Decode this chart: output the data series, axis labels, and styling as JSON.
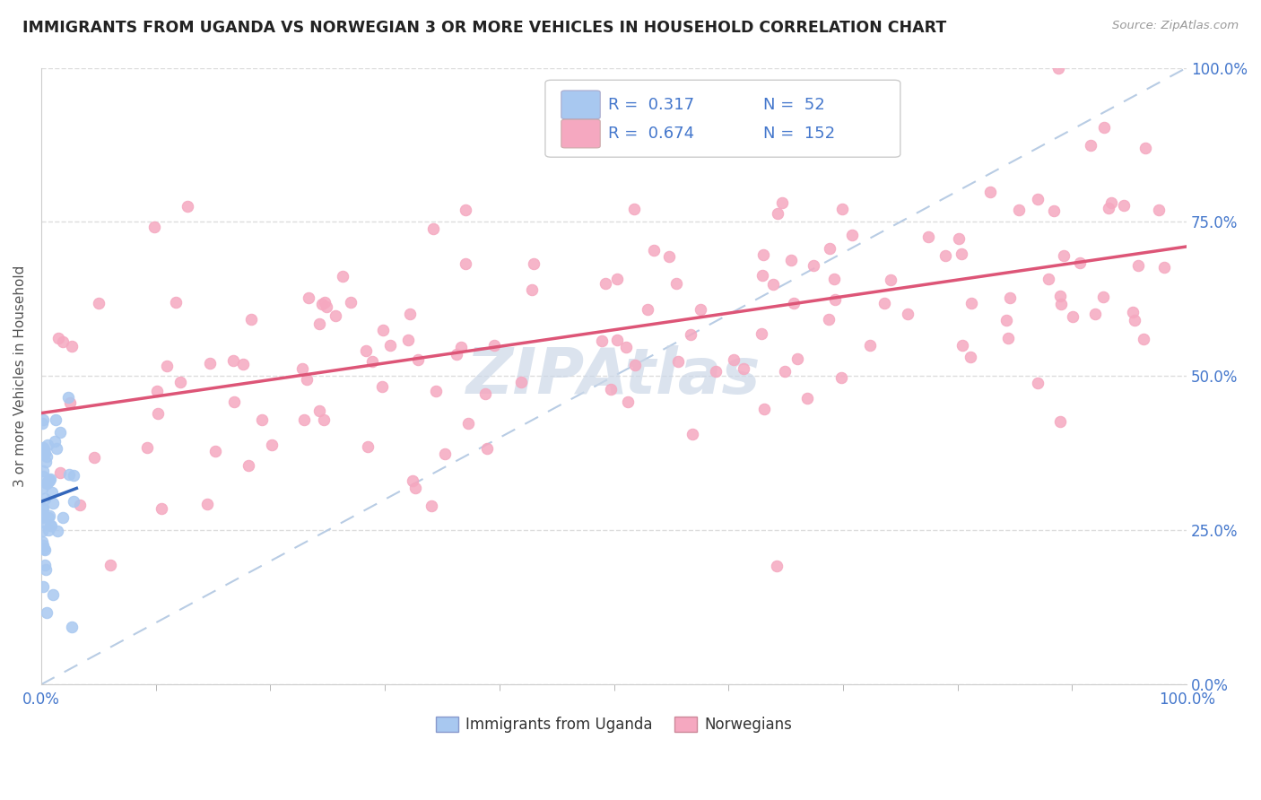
{
  "title": "IMMIGRANTS FROM UGANDA VS NORWEGIAN 3 OR MORE VEHICLES IN HOUSEHOLD CORRELATION CHART",
  "source": "Source: ZipAtlas.com",
  "ylabel": "3 or more Vehicles in Household",
  "xlim": [
    0,
    1.0
  ],
  "ylim": [
    0,
    1.0
  ],
  "ytick_positions": [
    0.0,
    0.25,
    0.5,
    0.75,
    1.0
  ],
  "ytick_labels": [
    "0.0%",
    "25.0%",
    "50.0%",
    "75.0%",
    "100.0%"
  ],
  "xtick_labels": [
    "0.0%",
    "100.0%"
  ],
  "legend_R1": "0.317",
  "legend_N1": "52",
  "legend_R2": "0.674",
  "legend_N2": "152",
  "color_uganda": "#a8c8f0",
  "color_norwegian": "#f5a8c0",
  "line_color_uganda": "#3366bb",
  "line_color_norwegian": "#dd5577",
  "diagonal_color": "#b8cce4",
  "background_color": "#ffffff",
  "watermark_color": "#ccd8e8",
  "title_color": "#222222",
  "title_fontsize": 12.5,
  "axis_label_color": "#4477cc",
  "legend_text_color": "#4477cc",
  "grid_color": "#dddddd",
  "seed": 42,
  "nor_intercept": 0.44,
  "nor_slope": 0.27
}
